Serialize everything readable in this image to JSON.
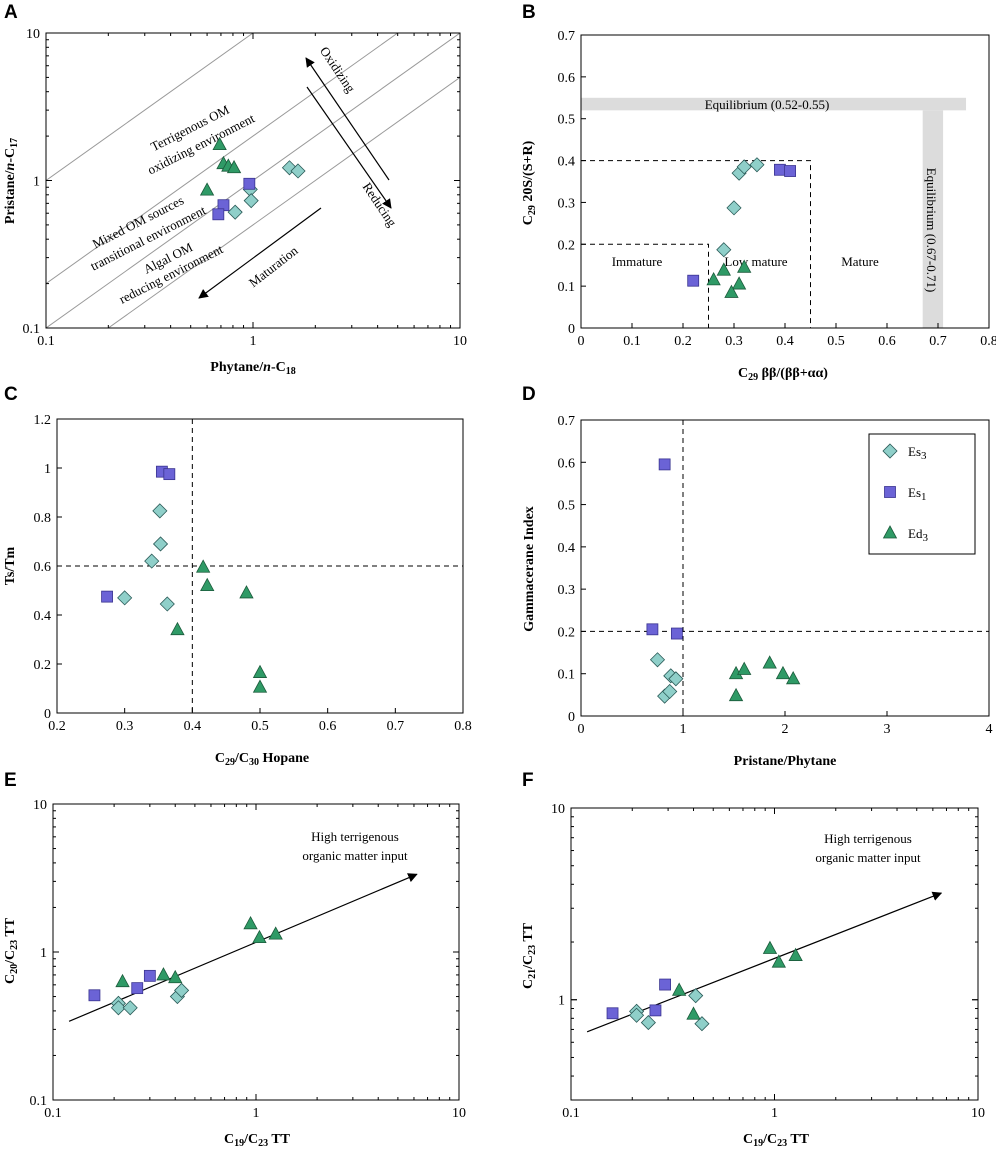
{
  "colors": {
    "Es3": "#8fcfc9",
    "Es1": "#6b63d6",
    "Ed3": "#2f9a66",
    "equilibrium_band": "#dcdcdc"
  },
  "chart_data": [
    {
      "panel": "A",
      "type": "scatter",
      "xscale": "log",
      "yscale": "log",
      "xlim": [
        0.1,
        10
      ],
      "ylim": [
        0.1,
        10
      ],
      "xticks": [
        "0.1",
        "1",
        "10"
      ],
      "yticks": [
        "0.1",
        "1",
        "10"
      ],
      "xlabel": {
        "pre": "Phytane/",
        "it": "n",
        "post": "-C",
        "sub": "18"
      },
      "ylabel": {
        "pre": "Pristane/",
        "it": "n",
        "post": "-C",
        "sub": "17"
      },
      "lines": [
        {
          "x1": 0.1,
          "y1": 1.0,
          "x2": 1.0,
          "y2": 10
        },
        {
          "x1": 0.1,
          "y1": 0.2,
          "x2": 5.0,
          "y2": 10
        },
        {
          "x1": 0.1,
          "y1": 0.1,
          "x2": 10,
          "y2": 10
        },
        {
          "x1": 0.2,
          "y1": 0.1,
          "x2": 10,
          "y2": 5.0
        }
      ],
      "annotations": [
        "Terrigenous OM",
        "oxidizing environment",
        "Mixed OM sources",
        "transitional environment",
        "Algal OM",
        "reducing environment",
        "Oxidizing",
        "Reducing",
        "Maturation"
      ],
      "series": [
        {
          "name": "Es3",
          "marker": "diamond",
          "points": [
            [
              0.97,
              0.87
            ],
            [
              0.98,
              0.73
            ],
            [
              0.82,
              0.61
            ],
            [
              1.5,
              1.22
            ],
            [
              1.65,
              1.16
            ]
          ]
        },
        {
          "name": "Es1",
          "marker": "square",
          "points": [
            [
              0.96,
              0.95
            ],
            [
              0.72,
              0.68
            ],
            [
              0.68,
              0.59
            ]
          ]
        },
        {
          "name": "Ed3",
          "marker": "triangle",
          "points": [
            [
              0.69,
              1.75
            ],
            [
              0.72,
              1.3
            ],
            [
              0.76,
              1.25
            ],
            [
              0.81,
              1.22
            ],
            [
              0.6,
              0.86
            ]
          ]
        }
      ]
    },
    {
      "panel": "B",
      "type": "scatter",
      "xlim": [
        0,
        0.8
      ],
      "ylim": [
        0,
        0.7
      ],
      "xticks": [
        "0",
        "0.1",
        "0.2",
        "0.3",
        "0.4",
        "0.5",
        "0.6",
        "0.7",
        "0.8"
      ],
      "yticks": [
        "0",
        "0.1",
        "0.2",
        "0.3",
        "0.4",
        "0.5",
        "0.6",
        "0.7"
      ],
      "xlabel": {
        "pre": "C",
        "sub": "29",
        "post": " ββ/(ββ+αα)"
      },
      "ylabel": {
        "pre": "C",
        "sub": "29",
        "post": " 20S/(S+R)"
      },
      "equilibrium_h": {
        "label": "Equilibrium (0.52-0.55)",
        "ymin": 0.52,
        "ymax": 0.55
      },
      "equilibrium_v": {
        "label": "Equilibrium (0.67-0.71)",
        "xmin": 0.67,
        "xmax": 0.71
      },
      "regions": [
        "Immature",
        "Low mature",
        "Mature"
      ],
      "series": [
        {
          "name": "Es3",
          "marker": "diamond",
          "points": [
            [
              0.31,
              0.37
            ],
            [
              0.32,
              0.385
            ],
            [
              0.345,
              0.39
            ],
            [
              0.3,
              0.287
            ],
            [
              0.28,
              0.187
            ]
          ]
        },
        {
          "name": "Es1",
          "marker": "square",
          "points": [
            [
              0.39,
              0.378
            ],
            [
              0.41,
              0.375
            ],
            [
              0.22,
              0.113
            ]
          ]
        },
        {
          "name": "Ed3",
          "marker": "triangle",
          "points": [
            [
              0.28,
              0.138
            ],
            [
              0.32,
              0.145
            ],
            [
              0.26,
              0.115
            ],
            [
              0.31,
              0.105
            ],
            [
              0.295,
              0.085
            ]
          ]
        }
      ]
    },
    {
      "panel": "C",
      "type": "scatter",
      "xlim": [
        0.2,
        0.8
      ],
      "ylim": [
        0,
        1.2
      ],
      "xticks": [
        "0.2",
        "0.3",
        "0.4",
        "0.5",
        "0.6",
        "0.7",
        "0.8"
      ],
      "yticks": [
        "0",
        "0.2",
        "0.4",
        "0.6",
        "0.8",
        "1",
        "1.2"
      ],
      "xlabel": {
        "pre": "C",
        "sub": "29",
        "post": "/C",
        "sub2": "30",
        "post2": " Hopane"
      },
      "ylabel": {
        "pre": "Ts/Tm"
      },
      "dash_x": 0.4,
      "dash_y": 0.6,
      "series": [
        {
          "name": "Es3",
          "marker": "diamond",
          "points": [
            [
              0.352,
              0.825
            ],
            [
              0.353,
              0.69
            ],
            [
              0.34,
              0.62
            ],
            [
              0.3,
              0.47
            ],
            [
              0.363,
              0.445
            ]
          ]
        },
        {
          "name": "Es1",
          "marker": "square",
          "points": [
            [
              0.355,
              0.985
            ],
            [
              0.366,
              0.975
            ],
            [
              0.274,
              0.475
            ]
          ]
        },
        {
          "name": "Ed3",
          "marker": "triangle",
          "points": [
            [
              0.416,
              0.595
            ],
            [
              0.422,
              0.52
            ],
            [
              0.48,
              0.49
            ],
            [
              0.378,
              0.34
            ],
            [
              0.5,
              0.165
            ],
            [
              0.5,
              0.105
            ]
          ]
        }
      ]
    },
    {
      "panel": "D",
      "type": "scatter",
      "xlim": [
        0,
        4
      ],
      "ylim": [
        0,
        0.7
      ],
      "xticks": [
        "0",
        "1",
        "2",
        "3",
        "4"
      ],
      "yticks": [
        "0",
        "0.1",
        "0.2",
        "0.3",
        "0.4",
        "0.5",
        "0.6",
        "0.7"
      ],
      "xlabel": {
        "pre": "Pristane/Phytane"
      },
      "ylabel": {
        "pre": "Gammacerane Index"
      },
      "dash_x": 1,
      "dash_y": 0.2,
      "legend": [
        {
          "name": "Es3",
          "marker": "diamond",
          "base": "Es",
          "sub": "3"
        },
        {
          "name": "Es1",
          "marker": "square",
          "base": "Es",
          "sub": "1"
        },
        {
          "name": "Ed3",
          "marker": "triangle",
          "base": "Ed",
          "sub": "3"
        }
      ],
      "series": [
        {
          "name": "Es3",
          "marker": "diamond",
          "points": [
            [
              0.75,
              0.133
            ],
            [
              0.88,
              0.095
            ],
            [
              0.93,
              0.088
            ],
            [
              0.82,
              0.047
            ],
            [
              0.87,
              0.058
            ]
          ]
        },
        {
          "name": "Es1",
          "marker": "square",
          "points": [
            [
              0.82,
              0.595
            ],
            [
              0.7,
              0.205
            ],
            [
              0.94,
              0.195
            ]
          ]
        },
        {
          "name": "Ed3",
          "marker": "triangle",
          "points": [
            [
              1.52,
              0.1
            ],
            [
              1.6,
              0.11
            ],
            [
              1.52,
              0.048
            ],
            [
              1.85,
              0.125
            ],
            [
              1.98,
              0.1
            ],
            [
              2.08,
              0.088
            ]
          ]
        }
      ]
    },
    {
      "panel": "E",
      "type": "scatter",
      "xscale": "log",
      "yscale": "log",
      "xlim": [
        0.1,
        10
      ],
      "ylim": [
        0.1,
        10
      ],
      "xticks": [
        "0.1",
        "1",
        "10"
      ],
      "yticks": [
        "0.1",
        "1",
        "10"
      ],
      "xlabel": {
        "pre": "C",
        "sub": "19",
        "post": "/C",
        "sub2": "23",
        "post2": " TT"
      },
      "ylabel": {
        "pre": "C",
        "sub": "20",
        "post": "/C",
        "sub2": "23",
        "post2": " TT"
      },
      "annotations": [
        "High terrigenous",
        "organic matter input"
      ],
      "arrow": [
        [
          0.12,
          0.34
        ],
        [
          6.2,
          3.35
        ]
      ],
      "series": [
        {
          "name": "Es3",
          "marker": "diamond",
          "points": [
            [
              0.21,
              0.45
            ],
            [
              0.21,
              0.42
            ],
            [
              0.24,
              0.42
            ],
            [
              0.41,
              0.5
            ],
            [
              0.43,
              0.55
            ]
          ]
        },
        {
          "name": "Es1",
          "marker": "square",
          "points": [
            [
              0.16,
              0.51
            ],
            [
              0.26,
              0.57
            ],
            [
              0.3,
              0.69
            ]
          ]
        },
        {
          "name": "Ed3",
          "marker": "triangle",
          "points": [
            [
              0.22,
              0.63
            ],
            [
              0.35,
              0.7
            ],
            [
              0.4,
              0.67
            ],
            [
              0.94,
              1.55
            ],
            [
              1.04,
              1.25
            ],
            [
              1.25,
              1.32
            ]
          ]
        }
      ]
    },
    {
      "panel": "F",
      "type": "scatter",
      "xscale": "log",
      "yscale": "log",
      "xlim": [
        0.1,
        10
      ],
      "ylim": [
        0.3,
        10
      ],
      "xticks": [
        "0.1",
        "1",
        "10"
      ],
      "yticks": [
        "1",
        "10"
      ],
      "xlabel": {
        "pre": "C",
        "sub": "19",
        "post": "/C",
        "sub2": "23",
        "post2": " TT"
      },
      "ylabel": {
        "pre": "C",
        "sub": "21",
        "post": "/C",
        "sub2": "23",
        "post2": " TT"
      },
      "annotations": [
        "High terrigenous",
        "organic matter input"
      ],
      "arrow": [
        [
          0.12,
          0.68
        ],
        [
          6.6,
          3.6
        ]
      ],
      "series": [
        {
          "name": "Es3",
          "marker": "diamond",
          "points": [
            [
              0.21,
              0.87
            ],
            [
              0.21,
              0.83
            ],
            [
              0.24,
              0.76
            ],
            [
              0.41,
              1.05
            ],
            [
              0.44,
              0.75
            ]
          ]
        },
        {
          "name": "Es1",
          "marker": "square",
          "points": [
            [
              0.16,
              0.85
            ],
            [
              0.26,
              0.88
            ],
            [
              0.29,
              1.2
            ]
          ]
        },
        {
          "name": "Ed3",
          "marker": "triangle",
          "points": [
            [
              0.34,
              1.12
            ],
            [
              0.4,
              0.84
            ],
            [
              0.95,
              1.85
            ],
            [
              1.05,
              1.57
            ],
            [
              1.27,
              1.7
            ]
          ]
        }
      ]
    }
  ]
}
